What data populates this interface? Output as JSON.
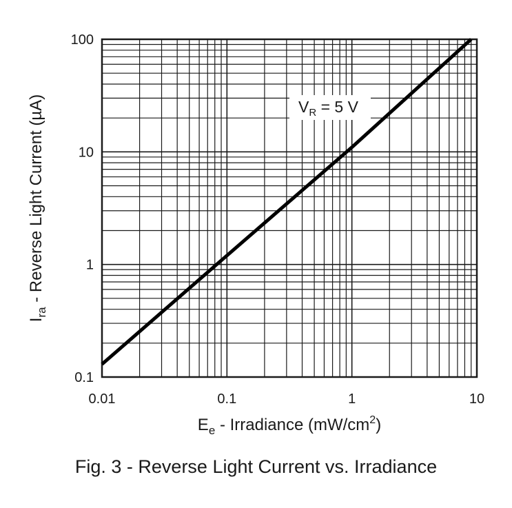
{
  "chart_data": {
    "type": "line",
    "xscale": "log",
    "yscale": "log",
    "xlim": [
      0.01,
      10
    ],
    "ylim": [
      0.1,
      100
    ],
    "grid": true,
    "xticks": [
      "0.01",
      "0.1",
      "1",
      "10"
    ],
    "yticks": [
      "0.1",
      "1",
      "10",
      "100"
    ],
    "x_label": {
      "prefix": "E",
      "sub": "e",
      "text": " - Irradiance (mW/cm",
      "sup": "2",
      "suffix": ")"
    },
    "y_label": {
      "prefix": "I",
      "sub": "ra",
      "text": " - Reverse Light Current (µA)"
    },
    "series": [
      {
        "name": "V_R = 5 V",
        "x": [
          0.01,
          0.1,
          1,
          9
        ],
        "y": [
          0.13,
          1.2,
          11,
          100
        ]
      }
    ],
    "annotation": {
      "prefix": "V",
      "sub": "R",
      "text": " = 5 V"
    }
  },
  "caption": "Fig. 3 - Reverse Light Current vs. Irradiance"
}
